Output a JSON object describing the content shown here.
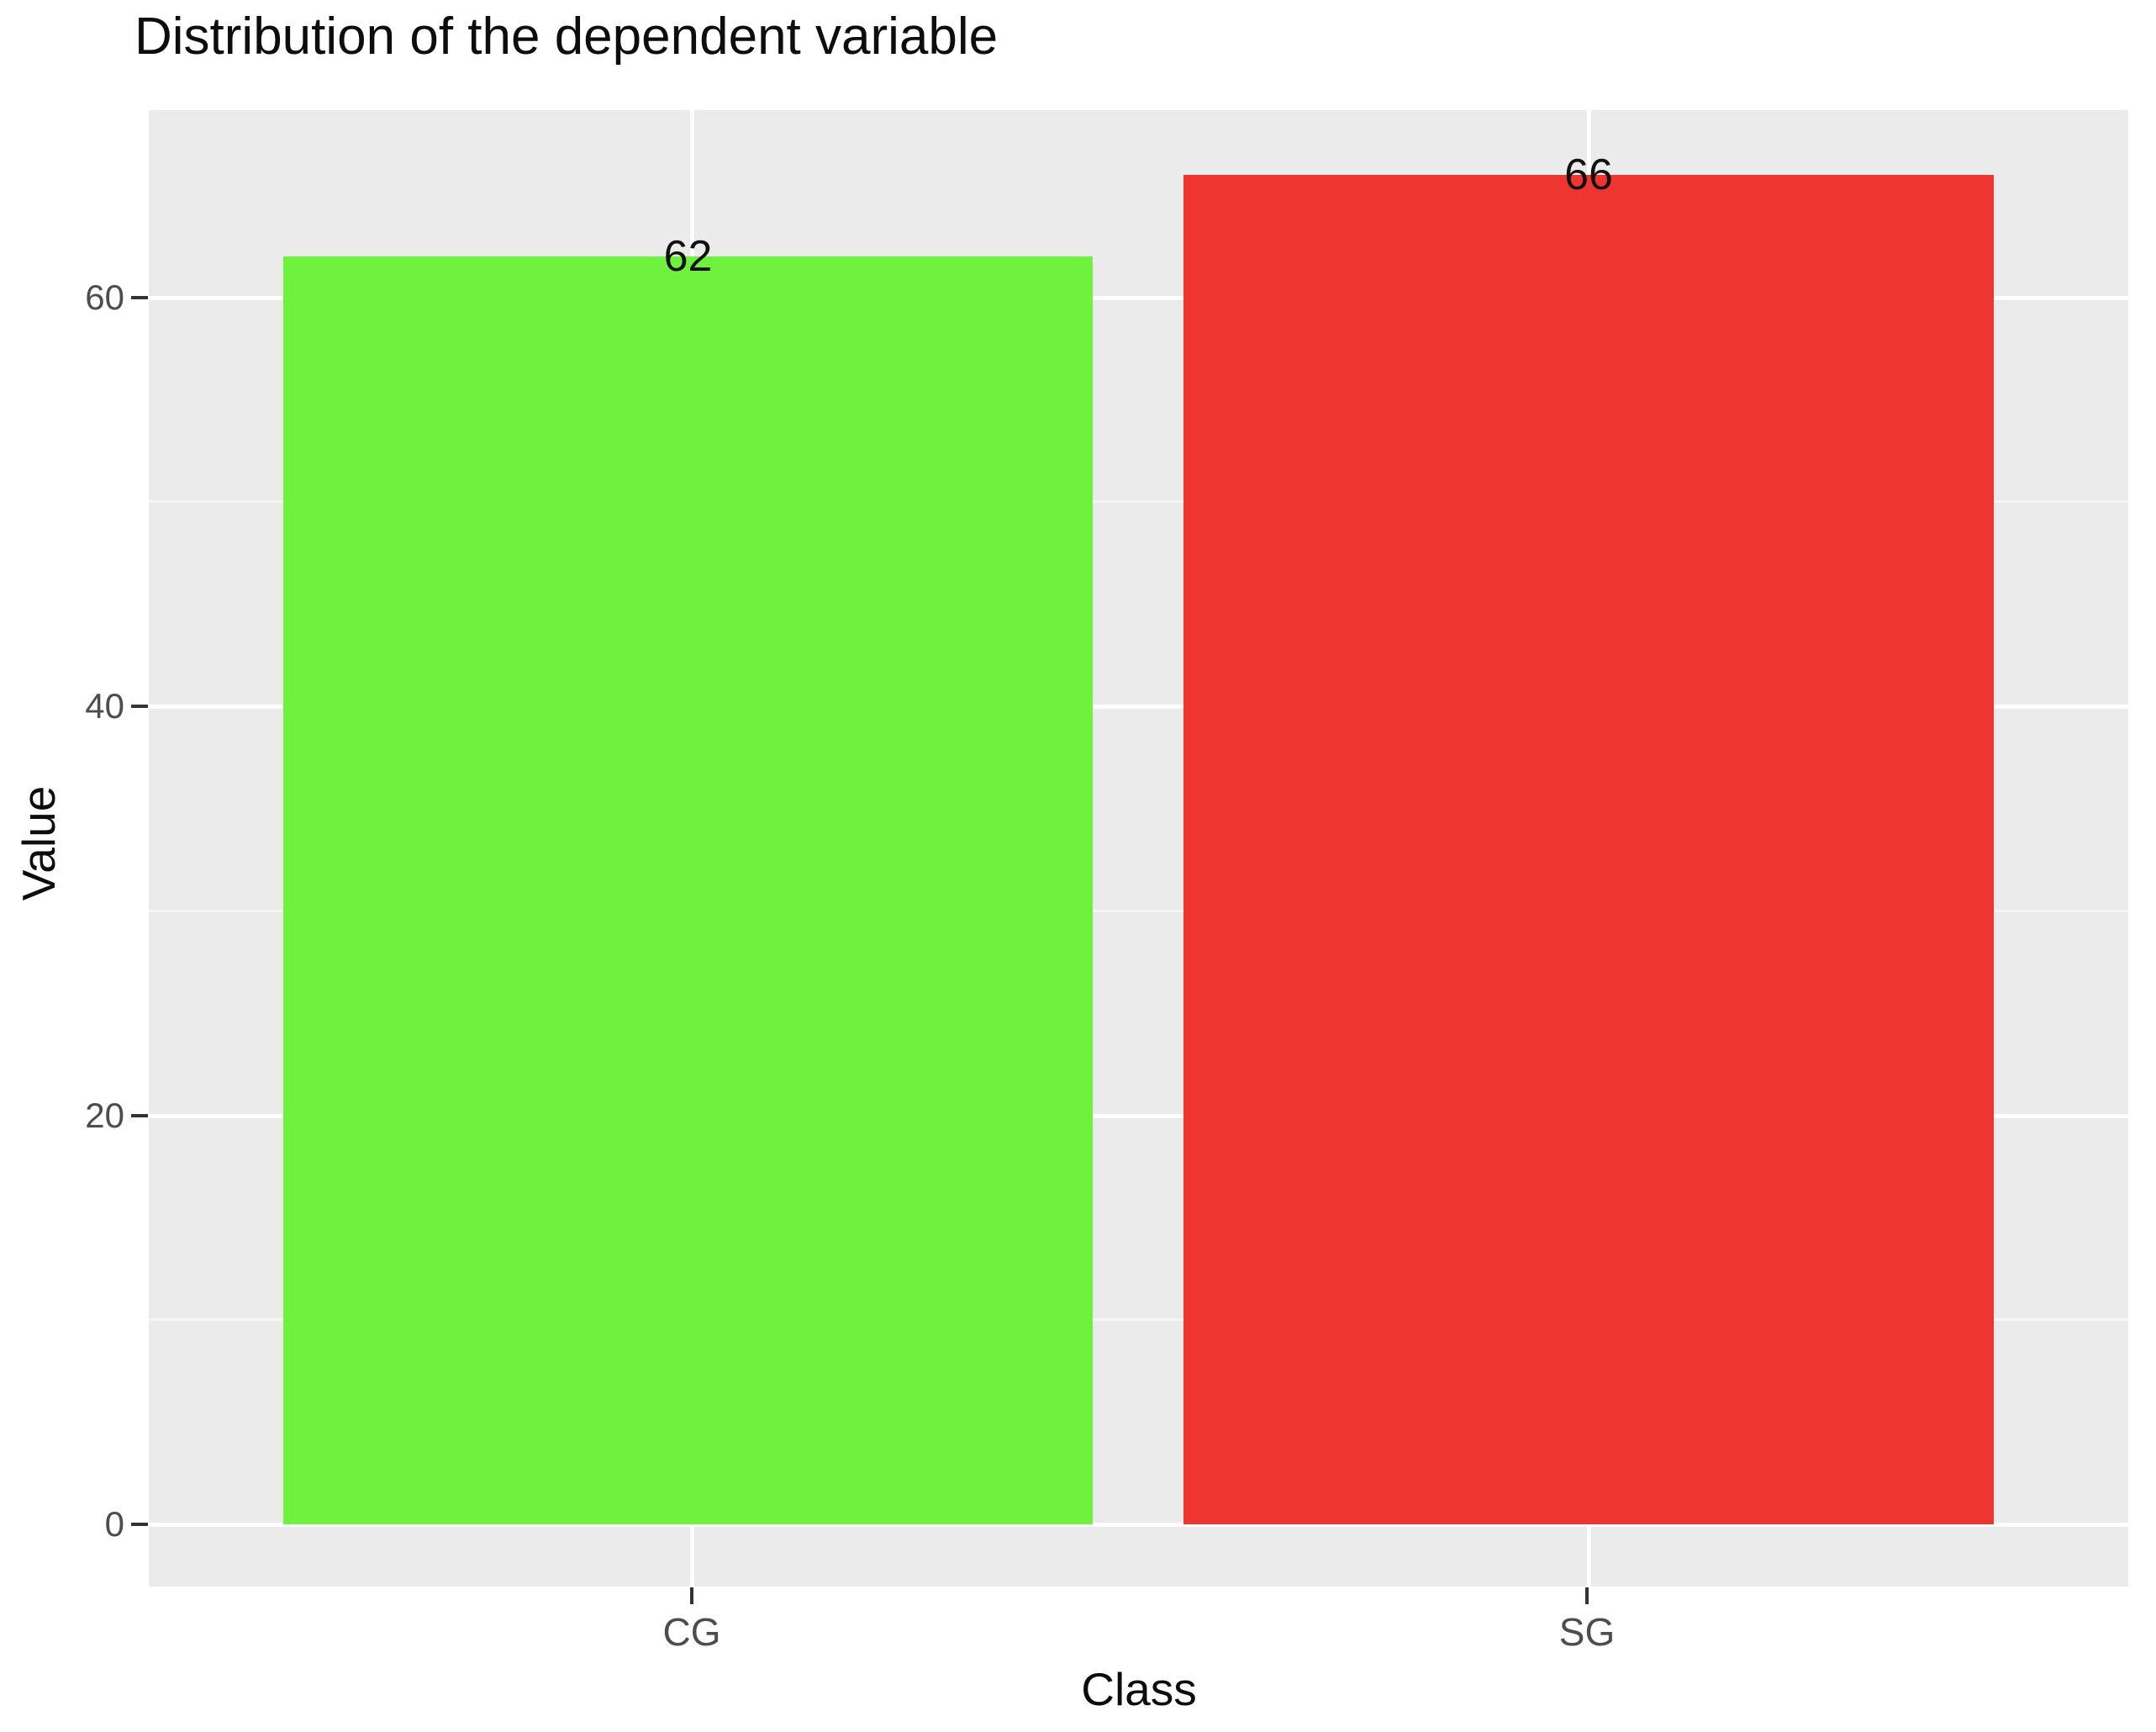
{
  "chart_data": {
    "type": "bar",
    "title": "Distribution of the dependent variable",
    "categories": [
      "CG",
      "SG"
    ],
    "values": [
      62,
      66
    ],
    "bar_colors": [
      "#6FF23E",
      "#EE3530"
    ],
    "xlabel": "Class",
    "ylabel": "Value",
    "ylim": [
      0,
      66
    ],
    "y_ticks": [
      0,
      20,
      40,
      60
    ],
    "y_tick_labels": [
      "0",
      "20",
      "40",
      "60"
    ],
    "grid": "on",
    "legend_position": "none",
    "panel_background": "#EBEBEB",
    "gridline_color": "#FFFFFF",
    "tick_label_color": "#4D4D4D"
  }
}
